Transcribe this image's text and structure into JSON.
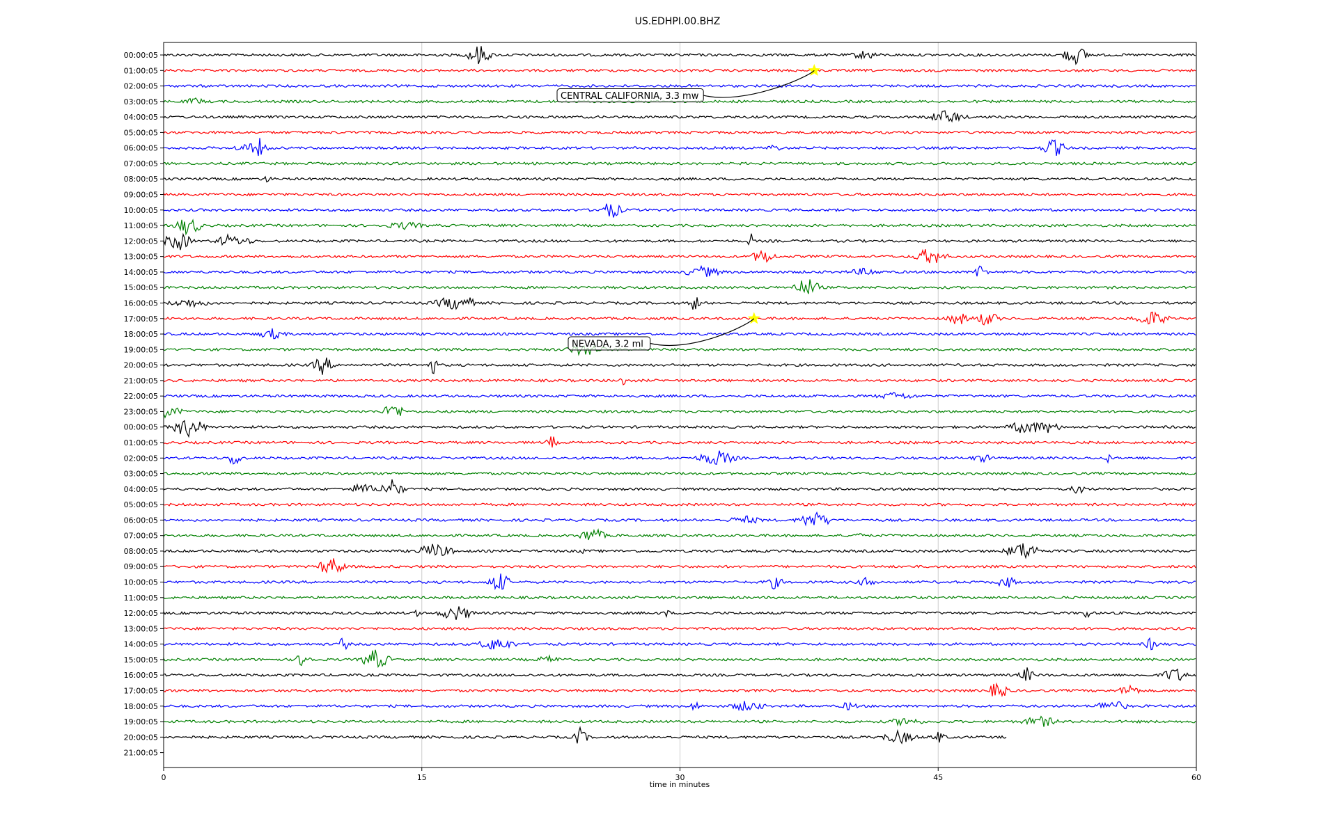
{
  "chart_data": {
    "type": "line",
    "title": "US.EDHPI.00.BHZ",
    "xlabel": "time in minutes",
    "ylabel": "",
    "xlim": [
      0,
      60
    ],
    "xticks": [
      0,
      15,
      30,
      45,
      60
    ],
    "grid": "vertical lines at x ticks",
    "trace_colors": [
      "#000000",
      "#ff0000",
      "#0000ff",
      "#008000"
    ],
    "trace_end_minute_last_row": 49,
    "rows": [
      "00:00:05",
      "01:00:05",
      "02:00:05",
      "03:00:05",
      "04:00:05",
      "05:00:05",
      "06:00:05",
      "07:00:05",
      "08:00:05",
      "09:00:05",
      "10:00:05",
      "11:00:05",
      "12:00:05",
      "13:00:05",
      "14:00:05",
      "15:00:05",
      "16:00:05",
      "17:00:05",
      "18:00:05",
      "19:00:05",
      "20:00:05",
      "21:00:05",
      "22:00:05",
      "23:00:05",
      "00:00:05",
      "01:00:05",
      "02:00:05",
      "03:00:05",
      "04:00:05",
      "05:00:05",
      "06:00:05",
      "07:00:05",
      "08:00:05",
      "09:00:05",
      "10:00:05",
      "11:00:05",
      "12:00:05",
      "13:00:05",
      "14:00:05",
      "15:00:05",
      "16:00:05",
      "17:00:05",
      "18:00:05",
      "19:00:05",
      "20:00:05",
      "21:00:05"
    ],
    "events": [
      {
        "label": "CENTRAL CALIFORNIA, 3.3 mw",
        "row": 1,
        "minute": 37.8
      },
      {
        "label": "NEVADA, 3.2 ml",
        "row": 17,
        "minute": 34.3
      }
    ]
  }
}
